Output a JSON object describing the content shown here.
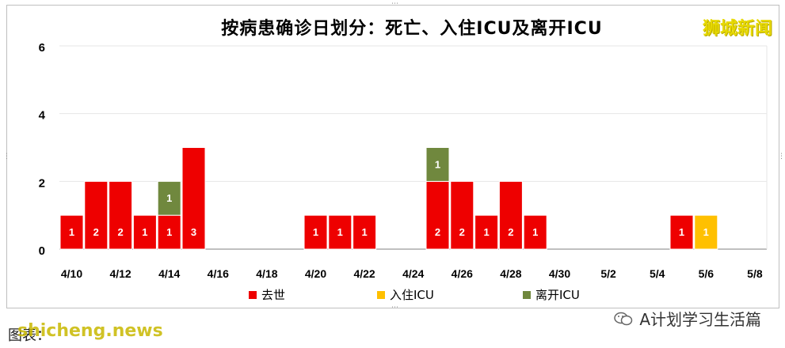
{
  "title": "按病患确诊日划分：死亡、入住ICU及离开ICU",
  "brand": "狮城新闻",
  "footer_left": "图表：",
  "footer_left_overlay": "shicheng.news",
  "footer_right": "A计划学习生活篇",
  "colors": {
    "death": "#ee0000",
    "icu_in": "#ffc000",
    "icu_out": "#70883e",
    "grid": "#e6e6e6",
    "axis": "#808080"
  },
  "chart_data": {
    "type": "bar",
    "stacked": true,
    "title": "按病患确诊日划分：死亡、入住ICU及离开ICU",
    "ylim": [
      0,
      6
    ],
    "yticks": [
      "0",
      "2",
      "4",
      "6"
    ],
    "xtick_labels": [
      "4/10",
      "4/12",
      "4/14",
      "4/16",
      "4/18",
      "4/20",
      "4/22",
      "4/24",
      "4/26",
      "4/28",
      "4/30",
      "5/2",
      "5/4",
      "5/6",
      "5/8"
    ],
    "categories": [
      "4/10",
      "4/11",
      "4/12",
      "4/13",
      "4/14",
      "4/15",
      "4/16",
      "4/17",
      "4/18",
      "4/19",
      "4/20",
      "4/21",
      "4/22",
      "4/23",
      "4/24",
      "4/25",
      "4/26",
      "4/27",
      "4/28",
      "4/29",
      "4/30",
      "5/1",
      "5/2",
      "5/3",
      "5/4",
      "5/5",
      "5/6",
      "5/7",
      "5/8"
    ],
    "series": [
      {
        "name": "去世",
        "key": "death",
        "values": [
          1,
          2,
          2,
          1,
          1,
          3,
          0,
          0,
          0,
          0,
          1,
          1,
          1,
          0,
          0,
          2,
          2,
          1,
          2,
          1,
          0,
          0,
          0,
          0,
          0,
          1,
          0,
          0,
          0
        ]
      },
      {
        "name": "入住ICU",
        "key": "icu_in",
        "values": [
          0,
          0,
          0,
          0,
          0,
          0,
          0,
          0,
          0,
          0,
          0,
          0,
          0,
          0,
          0,
          0,
          0,
          0,
          0,
          0,
          0,
          0,
          0,
          0,
          0,
          0,
          1,
          0,
          0
        ]
      },
      {
        "name": "离开ICU",
        "key": "icu_out",
        "values": [
          0,
          0,
          0,
          0,
          1,
          0,
          0,
          0,
          0,
          0,
          0,
          0,
          0,
          0,
          0,
          1,
          0,
          0,
          0,
          0,
          0,
          0,
          0,
          0,
          0,
          0,
          0,
          0,
          0
        ]
      }
    ],
    "legend_position": "bottom",
    "data_labels": true,
    "grid": true
  }
}
